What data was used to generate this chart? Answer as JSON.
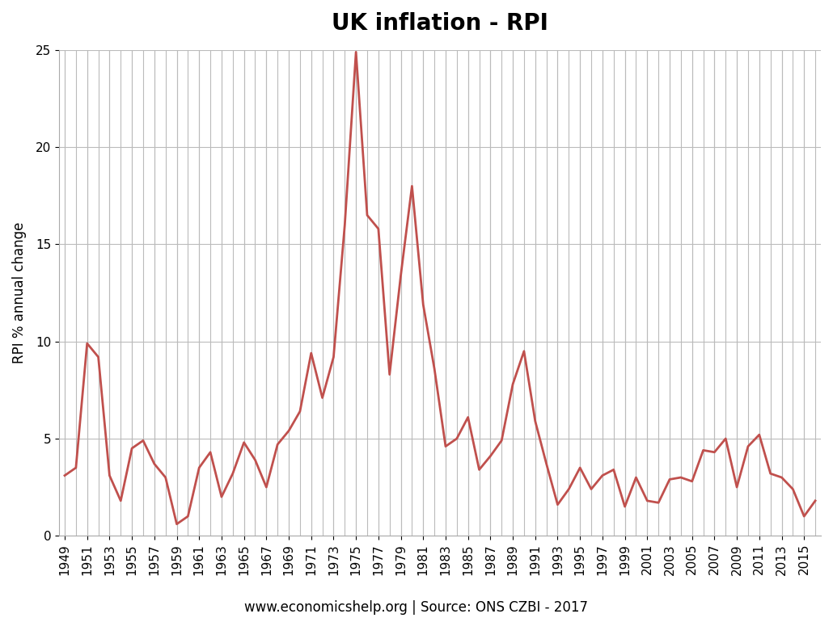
{
  "title": "UK inflation - RPI",
  "ylabel": "RPI % annual change",
  "xlabel_note": "www.economicshelp.org | Source: ONS CZBI - 2017",
  "line_color": "#c0504d",
  "background_color": "#ffffff",
  "grid_color": "#bbbbbb",
  "ylim": [
    0,
    25
  ],
  "yticks": [
    0,
    5,
    10,
    15,
    20,
    25
  ],
  "years": [
    1949,
    1950,
    1951,
    1952,
    1953,
    1954,
    1955,
    1956,
    1957,
    1958,
    1959,
    1960,
    1961,
    1962,
    1963,
    1964,
    1965,
    1966,
    1967,
    1968,
    1969,
    1970,
    1971,
    1972,
    1973,
    1974,
    1975,
    1976,
    1977,
    1978,
    1979,
    1980,
    1981,
    1982,
    1983,
    1984,
    1985,
    1986,
    1987,
    1988,
    1989,
    1990,
    1991,
    1992,
    1993,
    1994,
    1995,
    1996,
    1997,
    1998,
    1999,
    2000,
    2001,
    2002,
    2003,
    2004,
    2005,
    2006,
    2007,
    2008,
    2009,
    2010,
    2011,
    2012,
    2013,
    2014,
    2015,
    2016
  ],
  "values": [
    3.1,
    3.5,
    9.9,
    9.2,
    3.1,
    1.8,
    4.5,
    4.9,
    3.7,
    3.0,
    0.6,
    1.0,
    3.5,
    4.3,
    2.0,
    3.2,
    4.8,
    3.9,
    2.5,
    4.7,
    5.4,
    6.4,
    9.4,
    7.1,
    9.2,
    16.0,
    24.9,
    16.5,
    15.8,
    8.3,
    13.4,
    18.0,
    11.9,
    8.6,
    4.6,
    5.0,
    6.1,
    3.4,
    4.1,
    4.9,
    7.8,
    9.5,
    5.9,
    3.7,
    1.6,
    2.4,
    3.5,
    2.4,
    3.1,
    3.4,
    1.5,
    3.0,
    1.8,
    1.7,
    2.9,
    3.0,
    2.8,
    4.4,
    4.3,
    5.0,
    2.5,
    4.6,
    5.2,
    3.2,
    3.0,
    2.4,
    1.0,
    1.8
  ],
  "title_fontsize": 20,
  "ylabel_fontsize": 12,
  "tick_fontsize": 11,
  "note_fontsize": 12
}
